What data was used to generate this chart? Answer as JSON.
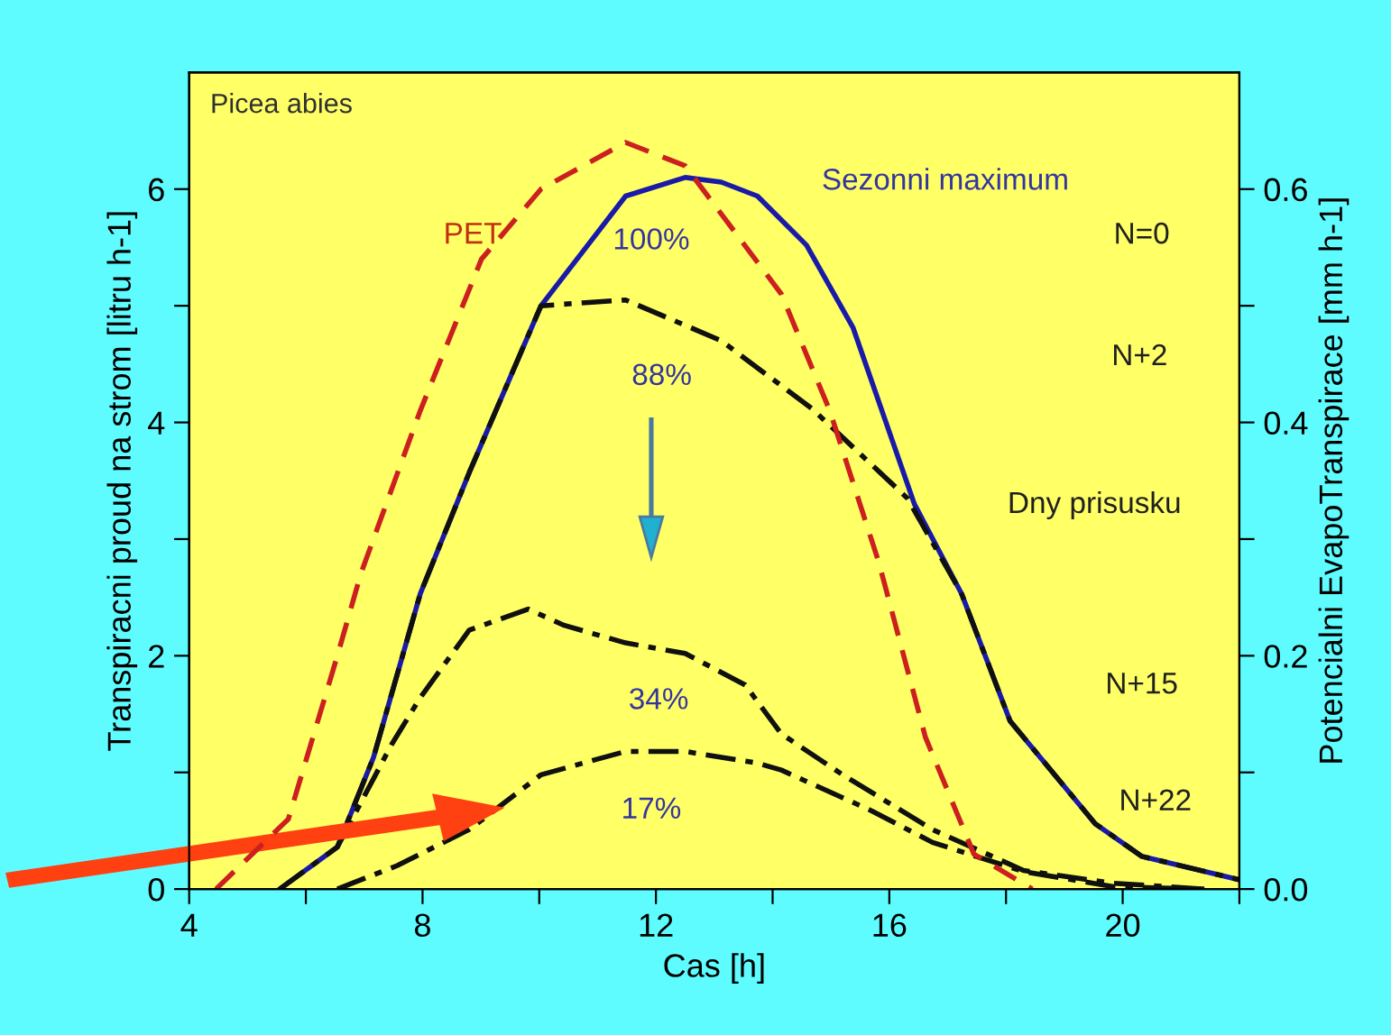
{
  "chart_data": {
    "type": "line",
    "title": "Picea abies",
    "xlabel": "Cas [h]",
    "ylabel": "Transpiracni proud na strom [litru h-1]",
    "y2label": "Potencialni EvapoTranspirace [mm h-1]",
    "xlim": [
      4,
      22
    ],
    "xticks": [
      4,
      {
        "value": 6,
        "label": null
      },
      8,
      {
        "value": 10,
        "label": null
      },
      12,
      {
        "value": 14,
        "label": null
      },
      16,
      {
        "value": 18,
        "label": null
      },
      20,
      {
        "value": 22,
        "label": null
      }
    ],
    "ylim": [
      0,
      7
    ],
    "yticks": [
      0,
      {
        "value": 1,
        "label": null
      },
      2,
      {
        "value": 3,
        "label": null
      },
      4,
      {
        "value": 5,
        "label": null
      },
      6
    ],
    "y2lim": [
      0,
      0.7
    ],
    "y2ticks": [
      {
        "value": 0,
        "label": "0.0"
      },
      {
        "value": 0.1,
        "label": null
      },
      {
        "value": 0.2,
        "label": "0.2"
      },
      {
        "value": 0.3,
        "label": null
      },
      {
        "value": 0.4,
        "label": "0.4"
      },
      {
        "value": 0.5,
        "label": null
      },
      {
        "value": 0.6,
        "label": "0.6"
      }
    ],
    "grid": false,
    "series": [
      {
        "color": "#cc2020",
        "line_style": "dashed",
        "axis": "y2",
        "x": [
          4.46,
          5.7,
          6.54,
          6.94,
          7.96,
          9.01,
          10.03,
          11.48,
          12.5,
          13.1,
          14.15,
          14.98,
          15.82,
          16.62,
          17.45,
          18.45
        ],
        "values": [
          0,
          0.06,
          0.2,
          0.27,
          0.41,
          0.54,
          0.6,
          0.64,
          0.62,
          0.58,
          0.51,
          0.41,
          0.28,
          0.13,
          0.03,
          0
        ]
      },
      {
        "color": "#1a1aa8",
        "line_style": "solid",
        "x": [
          5.55,
          6.54,
          7.16,
          7.96,
          8.8,
          10.03,
          11.48,
          12.5,
          13.12,
          13.74,
          14.58,
          15.38,
          16.43,
          17.24,
          18.07,
          19.53,
          20.33,
          22
        ],
        "values": [
          0,
          0.36,
          1.13,
          2.53,
          3.57,
          5.0,
          5.94,
          6.1,
          6.06,
          5.94,
          5.52,
          4.81,
          3.3,
          2.53,
          1.44,
          0.56,
          0.28,
          0.08
        ]
      },
      {
        "color": "#101010",
        "line_style": "dashed",
        "x": [
          5.55,
          6.54,
          7.16,
          7.96,
          8.8,
          10.03,
          11.48,
          13.12,
          14.67,
          16.31,
          17.24,
          18.07,
          19.53,
          20.33,
          22
        ],
        "values": [
          0,
          0.36,
          1.13,
          2.53,
          3.57,
          5.0,
          5.05,
          4.7,
          4.12,
          3.35,
          2.53,
          1.44,
          0.56,
          0.28,
          0.08
        ]
      },
      {
        "color": "#101010",
        "line_style": "dashed",
        "x": [
          6.54,
          7.47,
          7.96,
          8.8,
          9.81,
          10.43,
          11.48,
          12.5,
          13.53,
          14.15,
          15.2,
          16.74,
          18.3,
          19.84,
          21.4
        ],
        "values": [
          0.36,
          1.24,
          1.64,
          2.22,
          2.4,
          2.26,
          2.11,
          2.02,
          1.75,
          1.33,
          0.98,
          0.51,
          0.16,
          0.05,
          0
        ]
      },
      {
        "color": "#101010",
        "line_style": "dashed",
        "x": [
          6.54,
          7.56,
          8.8,
          10.03,
          11.48,
          12.5,
          13.74,
          14.15,
          15.7,
          16.74,
          18.3,
          19.84,
          21.4
        ],
        "values": [
          0,
          0.2,
          0.51,
          0.98,
          1.18,
          1.18,
          1.08,
          1.02,
          0.67,
          0.4,
          0.15,
          0.02,
          0
        ]
      }
    ],
    "annotations": [
      "PET",
      "100%",
      "88%",
      "34%",
      "17%",
      "Sezonni maximum",
      "N=0",
      "N+2",
      "Dny prisusku",
      "N+15",
      "N+22"
    ]
  }
}
